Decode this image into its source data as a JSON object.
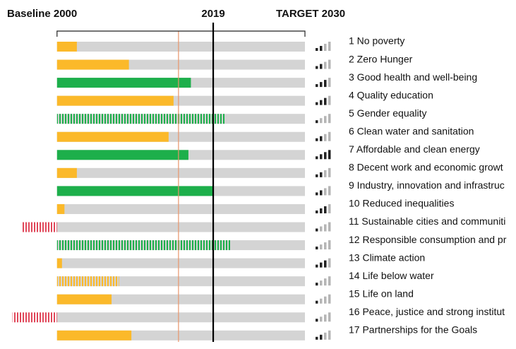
{
  "chart_data": {
    "type": "bar",
    "orientation": "horizontal",
    "categories": [
      "1 No poverty",
      "2 Zero Hunger",
      "3 Good health and well-being",
      "4 Quality education",
      "5 Gender equality",
      "6 Clean water and sanitation",
      "7 Affordable and clean energy",
      "8 Decent work and economic growt",
      "9 Industry, innovation and infrastruc",
      "10 Reduced inequalities",
      "11 Sustainable cities and communiti",
      "12 Responsible consumption and pr",
      "13 Climate action",
      "14 Life below water",
      "15 Life on land",
      "16 Peace, justice and strong institut",
      "17 Partnerships for the Goals"
    ],
    "values": [
      8,
      29,
      54,
      47,
      68,
      45,
      53,
      8,
      63,
      3,
      -14,
      70,
      2,
      25,
      22,
      -18,
      30
    ],
    "colors": [
      "#fbb92a",
      "#fbb92a",
      "#1daf4b",
      "#fbb92a",
      "#1daf4b",
      "#fbb92a",
      "#1daf4b",
      "#fbb92a",
      "#1daf4b",
      "#fbb92a",
      "#e0485a",
      "#1daf4b",
      "#fbb92a",
      "#fbb92a",
      "#fbb92a",
      "#e0485a",
      "#fbb92a"
    ],
    "hatched": [
      false,
      false,
      false,
      false,
      true,
      false,
      false,
      false,
      false,
      false,
      true,
      true,
      false,
      true,
      false,
      true,
      false
    ],
    "trend": [
      2,
      2,
      3,
      3,
      1,
      2,
      4,
      2,
      2,
      3,
      1,
      1,
      3,
      1,
      1,
      1,
      2
    ],
    "xlim": [
      -23,
      100
    ],
    "axis_labels": [
      {
        "value": 0,
        "label": "Baseline 2000"
      },
      {
        "value": 63,
        "label": "2019"
      },
      {
        "value": 100,
        "label": "TARGET 2030"
      }
    ],
    "reference_lines": [
      {
        "value": 49,
        "color": "#e8956a"
      }
    ],
    "track_color": "#d4d4d4"
  }
}
